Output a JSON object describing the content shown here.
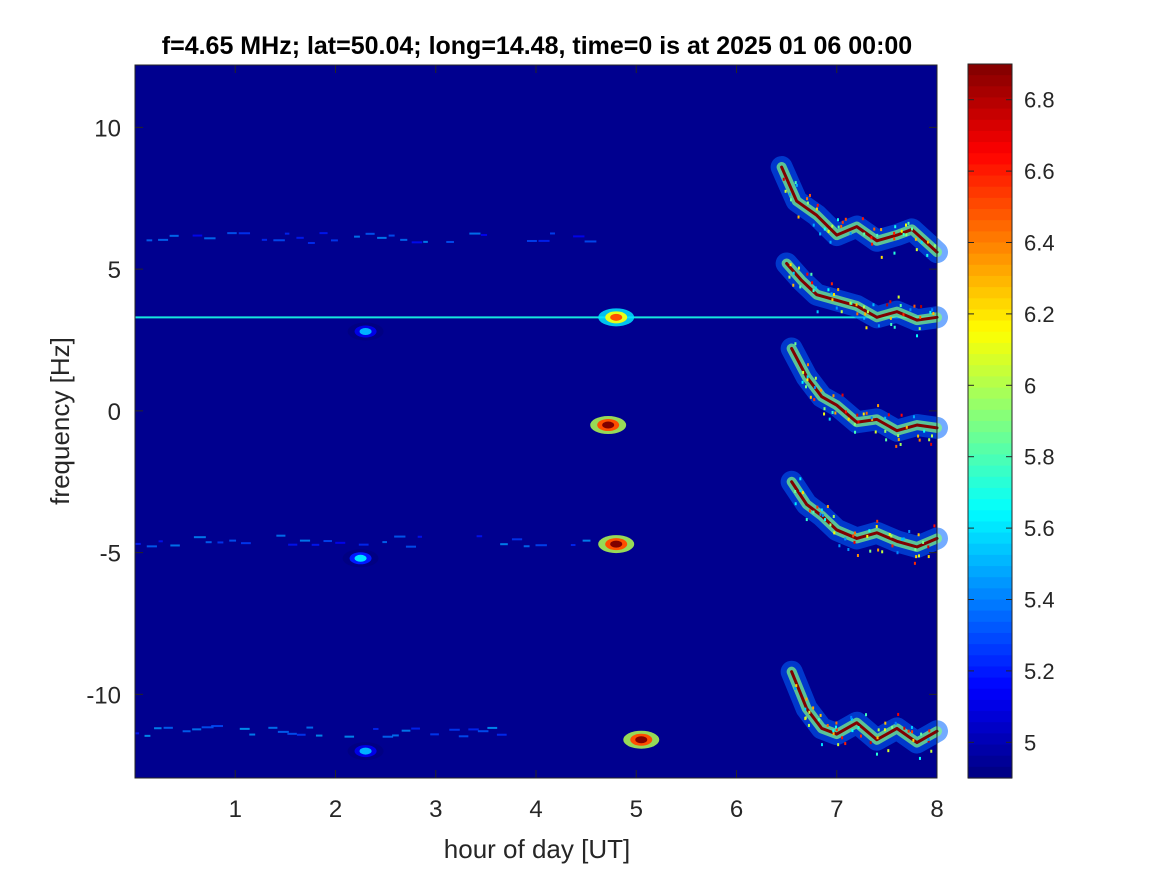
{
  "chart_data": {
    "type": "heatmap",
    "title": "f=4.65 MHz;  lat=50.04; long=14.48, time=0 is at 2025 01 06 00:00",
    "xlabel": "hour of day [UT]",
    "ylabel": "frequency [Hz]",
    "xlim": [
      0,
      8
    ],
    "ylim": [
      -12.95,
      12.2
    ],
    "xticks": [
      1,
      2,
      3,
      4,
      5,
      6,
      7,
      8
    ],
    "xtick_labels": [
      "1",
      "2",
      "3",
      "4",
      "5",
      "6",
      "7",
      "8"
    ],
    "yticks": [
      10,
      5,
      0,
      -5,
      -10
    ],
    "ytick_labels": [
      "10",
      "5",
      "0",
      "-5",
      "-10"
    ],
    "colormap": "jet",
    "background_color": "#00008f",
    "colorbar": {
      "range": [
        4.9,
        6.9
      ],
      "ticks": [
        6.8,
        6.6,
        6.4,
        6.2,
        6,
        5.8,
        5.6,
        5.4,
        5.2,
        5
      ],
      "tick_labels": [
        "6.8",
        "6.6",
        "6.4",
        "6.2",
        "6",
        "5.8",
        "5.6",
        "5.4",
        "5.2",
        "5"
      ]
    },
    "features": [
      {
        "kind": "constant_line",
        "freq_hz": 3.3,
        "from_hour": 0,
        "to_hour": 8,
        "level": 5.7
      },
      {
        "kind": "weak_trace",
        "freq_hz": 6.1,
        "from_hour": 0,
        "to_hour": 4.6,
        "level": 5.15
      },
      {
        "kind": "weak_trace",
        "freq_hz": -4.6,
        "from_hour": 0,
        "to_hour": 4.7,
        "level": 5.15
      },
      {
        "kind": "weak_trace",
        "freq_hz": -11.3,
        "from_hour": 0,
        "to_hour": 3.8,
        "level": 5.2
      },
      {
        "kind": "blob",
        "hour": 2.3,
        "freq_hz": 2.8,
        "level": 5.5
      },
      {
        "kind": "blob",
        "hour": 2.25,
        "freq_hz": -5.2,
        "level": 5.6
      },
      {
        "kind": "blob",
        "hour": 2.3,
        "freq_hz": -12.0,
        "level": 5.5
      },
      {
        "kind": "blob",
        "hour": 4.8,
        "freq_hz": 3.3,
        "level": 6.5
      },
      {
        "kind": "blob",
        "hour": 4.72,
        "freq_hz": -0.5,
        "level": 6.9
      },
      {
        "kind": "blob",
        "hour": 4.8,
        "freq_hz": -4.7,
        "level": 6.9
      },
      {
        "kind": "blob",
        "hour": 5.05,
        "freq_hz": -11.6,
        "level": 6.9
      },
      {
        "kind": "wavy_trace",
        "level": 6.9,
        "points": [
          [
            6.45,
            8.6
          ],
          [
            6.6,
            7.4
          ],
          [
            6.8,
            6.9
          ],
          [
            7.0,
            6.2
          ],
          [
            7.2,
            6.5
          ],
          [
            7.4,
            6.0
          ],
          [
            7.6,
            6.2
          ],
          [
            7.75,
            6.4
          ],
          [
            8.0,
            5.6
          ]
        ]
      },
      {
        "kind": "wavy_trace",
        "level": 6.9,
        "points": [
          [
            6.5,
            5.2
          ],
          [
            6.65,
            4.6
          ],
          [
            6.8,
            4.1
          ],
          [
            7.0,
            3.9
          ],
          [
            7.2,
            3.7
          ],
          [
            7.4,
            3.3
          ],
          [
            7.6,
            3.5
          ],
          [
            7.8,
            3.2
          ],
          [
            8.0,
            3.3
          ]
        ]
      },
      {
        "kind": "wavy_trace",
        "level": 6.9,
        "points": [
          [
            6.55,
            2.2
          ],
          [
            6.7,
            1.2
          ],
          [
            6.85,
            0.5
          ],
          [
            7.0,
            0.2
          ],
          [
            7.2,
            -0.4
          ],
          [
            7.4,
            -0.3
          ],
          [
            7.6,
            -0.7
          ],
          [
            7.8,
            -0.5
          ],
          [
            8.0,
            -0.6
          ]
        ]
      },
      {
        "kind": "wavy_trace",
        "level": 6.9,
        "points": [
          [
            6.55,
            -2.5
          ],
          [
            6.7,
            -3.3
          ],
          [
            6.85,
            -3.7
          ],
          [
            7.0,
            -4.2
          ],
          [
            7.2,
            -4.5
          ],
          [
            7.4,
            -4.3
          ],
          [
            7.6,
            -4.6
          ],
          [
            7.8,
            -4.8
          ],
          [
            8.0,
            -4.5
          ]
        ]
      },
      {
        "kind": "wavy_trace",
        "level": 6.9,
        "points": [
          [
            6.55,
            -9.2
          ],
          [
            6.7,
            -10.5
          ],
          [
            6.85,
            -11.2
          ],
          [
            7.0,
            -11.4
          ],
          [
            7.2,
            -11.0
          ],
          [
            7.4,
            -11.6
          ],
          [
            7.6,
            -11.2
          ],
          [
            7.8,
            -11.7
          ],
          [
            8.0,
            -11.3
          ]
        ]
      }
    ]
  }
}
